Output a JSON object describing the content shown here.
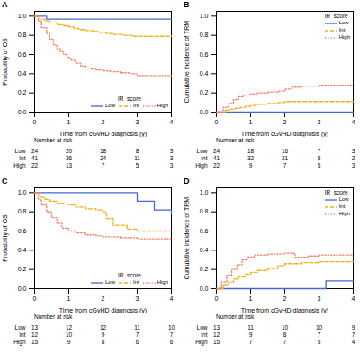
{
  "chart_data": [
    {
      "type": "step",
      "title": "A",
      "xlabel": "Time from cGvHD diagnosis (y)",
      "ylabel": "Probability of OS",
      "xlim": [
        0,
        4
      ],
      "ylim": [
        0.0,
        1.05
      ],
      "xticks": [
        0,
        1,
        2,
        3,
        4
      ],
      "yticks": [
        {
          "value": 0.0,
          "label": "0.0"
        },
        0.2,
        0.4,
        0.6,
        0.8,
        {
          "value": 1.0,
          "label": "1.0"
        }
      ],
      "grid": false,
      "legend": "lower right",
      "legend_title": "IR  score",
      "series": [
        {
          "name": "Low",
          "line_style": "solid",
          "x": [
            0,
            0.25,
            0.35,
            4.0
          ],
          "values": [
            1.0,
            1.0,
            0.97,
            0.97
          ]
        },
        {
          "name": "Int",
          "line_style": "dashed",
          "x": [
            0,
            0.15,
            0.3,
            0.45,
            0.65,
            0.85,
            1.0,
            1.15,
            1.3,
            1.5,
            1.7,
            1.9,
            2.1,
            2.3,
            2.6,
            2.9,
            3.1,
            4.0
          ],
          "values": [
            1.0,
            0.97,
            0.95,
            0.93,
            0.91,
            0.9,
            0.89,
            0.87,
            0.86,
            0.85,
            0.84,
            0.83,
            0.82,
            0.81,
            0.8,
            0.79,
            0.79,
            0.79
          ]
        },
        {
          "name": "High",
          "line_style": "dotted",
          "x": [
            0,
            0.1,
            0.2,
            0.35,
            0.45,
            0.55,
            0.65,
            0.75,
            0.85,
            0.95,
            1.05,
            1.2,
            1.35,
            1.5,
            1.65,
            1.8,
            2.0,
            2.2,
            2.5,
            2.8,
            3.0,
            3.2,
            4.0
          ],
          "values": [
            1.0,
            0.95,
            0.88,
            0.82,
            0.76,
            0.7,
            0.66,
            0.63,
            0.6,
            0.57,
            0.54,
            0.51,
            0.48,
            0.46,
            0.45,
            0.44,
            0.43,
            0.42,
            0.41,
            0.4,
            0.38,
            0.38,
            0.38
          ]
        }
      ],
      "at_risk": {
        "title": "Number at risk",
        "times": [
          0,
          1,
          2,
          3,
          4
        ],
        "labels": [
          "Low",
          "Int",
          "High"
        ],
        "values": [
          [
            24,
            20,
            18,
            8,
            3
          ],
          [
            41,
            36,
            24,
            11,
            3
          ],
          [
            22,
            13,
            7,
            5,
            3
          ]
        ]
      }
    },
    {
      "type": "step",
      "title": "B",
      "xlabel": "Time from cGvHD diagnosis (y)",
      "ylabel": "Cumulative incidence of TRM",
      "xlim": [
        0,
        4
      ],
      "ylim": [
        0.0,
        1.05
      ],
      "xticks": [
        0,
        1,
        2,
        3,
        4
      ],
      "yticks": [
        {
          "value": 0.0,
          "label": "0.0"
        },
        0.2,
        0.4,
        0.6,
        0.8,
        {
          "value": 1.0,
          "label": "1.0"
        }
      ],
      "grid": false,
      "legend": "upper right",
      "legend_title": "IR  score",
      "series": [
        {
          "name": "Low",
          "line_style": "solid",
          "x": [
            0,
            4.0
          ],
          "values": [
            0.0,
            0.0
          ]
        },
        {
          "name": "Int",
          "line_style": "dashed",
          "x": [
            0,
            0.25,
            0.4,
            0.55,
            0.7,
            0.85,
            1.0,
            1.2,
            1.5,
            1.8,
            2.0,
            2.15,
            2.4,
            4.0
          ],
          "values": [
            0.0,
            0.02,
            0.03,
            0.04,
            0.05,
            0.06,
            0.07,
            0.08,
            0.09,
            0.1,
            0.11,
            0.11,
            0.11,
            0.11
          ]
        },
        {
          "name": "High",
          "line_style": "dotted",
          "x": [
            0,
            0.2,
            0.35,
            0.5,
            0.65,
            0.8,
            1.0,
            1.2,
            1.5,
            1.8,
            2.0,
            2.2,
            2.5,
            2.8,
            3.0,
            4.0
          ],
          "values": [
            0.0,
            0.05,
            0.09,
            0.13,
            0.16,
            0.18,
            0.19,
            0.2,
            0.21,
            0.22,
            0.24,
            0.26,
            0.27,
            0.27,
            0.28,
            0.28
          ]
        }
      ],
      "at_risk": {
        "title": "Number at risk",
        "times": [
          0,
          1,
          2,
          3,
          4
        ],
        "labels": [
          "Low",
          "Int",
          "High"
        ],
        "values": [
          [
            24,
            18,
            16,
            7,
            3
          ],
          [
            41,
            32,
            21,
            8,
            2
          ],
          [
            22,
            9,
            7,
            5,
            3
          ]
        ]
      }
    },
    {
      "type": "step",
      "title": "C",
      "xlabel": "Time from cGvHD diagnosis (y)",
      "ylabel": "Probability of OS",
      "xlim": [
        0,
        4
      ],
      "ylim": [
        0.0,
        1.05
      ],
      "xticks": [
        0,
        1,
        2,
        3,
        4
      ],
      "yticks": [
        {
          "value": 0.0,
          "label": "0.0"
        },
        0.2,
        0.4,
        0.6,
        0.8,
        {
          "value": 1.0,
          "label": "1.0"
        }
      ],
      "grid": false,
      "legend": "lower right",
      "legend_title": "IR  score",
      "series": [
        {
          "name": "Low",
          "line_style": "solid",
          "x": [
            0,
            0.5,
            1.0,
            1.5,
            2.0,
            2.5,
            2.8,
            3.0,
            3.5,
            4.0
          ],
          "values": [
            1.0,
            1.0,
            1.0,
            1.0,
            1.0,
            1.0,
            1.0,
            0.91,
            0.82,
            0.78
          ]
        },
        {
          "name": "Int",
          "line_style": "dashed",
          "x": [
            0,
            0.15,
            0.3,
            0.45,
            0.65,
            0.85,
            1.0,
            1.2,
            1.5,
            1.8,
            2.0,
            2.1,
            2.3,
            2.7,
            3.0,
            4.0
          ],
          "values": [
            1.0,
            0.95,
            0.93,
            0.91,
            0.89,
            0.88,
            0.87,
            0.85,
            0.83,
            0.82,
            0.8,
            0.73,
            0.66,
            0.62,
            0.6,
            0.6
          ]
        },
        {
          "name": "High",
          "line_style": "dotted",
          "x": [
            0,
            0.1,
            0.2,
            0.35,
            0.5,
            0.65,
            0.8,
            1.0,
            1.2,
            1.5,
            1.8,
            2.0,
            2.5,
            3.0,
            4.0
          ],
          "values": [
            1.0,
            0.93,
            0.87,
            0.8,
            0.74,
            0.68,
            0.63,
            0.6,
            0.58,
            0.56,
            0.55,
            0.54,
            0.53,
            0.52,
            0.52
          ]
        }
      ],
      "at_risk": {
        "title": "Number at risk",
        "times": [
          0,
          1,
          2,
          3,
          4
        ],
        "labels": [
          "Low",
          "Int",
          "High"
        ],
        "values": [
          [
            13,
            12,
            12,
            11,
            10
          ],
          [
            12,
            10,
            9,
            7,
            7
          ],
          [
            15,
            9,
            8,
            6,
            6
          ]
        ]
      }
    },
    {
      "type": "step",
      "title": "D",
      "xlabel": "Time from cGvHD diagnosis (y)",
      "ylabel": "Cumulative incidence of TRM",
      "xlim": [
        0,
        4
      ],
      "ylim": [
        0.0,
        1.05
      ],
      "xticks": [
        0,
        1,
        2,
        3,
        4
      ],
      "yticks": [
        {
          "value": 0.0,
          "label": "0.0"
        },
        0.2,
        0.4,
        0.6,
        0.8,
        {
          "value": 1.0,
          "label": "1.0"
        }
      ],
      "grid": false,
      "legend": "upper right",
      "legend_title": "IR  score",
      "series": [
        {
          "name": "Low",
          "line_style": "solid",
          "x": [
            0,
            3.0,
            3.2,
            4.0
          ],
          "values": [
            0.0,
            0.0,
            0.08,
            0.08
          ]
        },
        {
          "name": "Int",
          "line_style": "dashed",
          "x": [
            0,
            0.2,
            0.35,
            0.5,
            0.65,
            0.85,
            1.0,
            1.2,
            1.5,
            1.8,
            2.0,
            2.5,
            3.0,
            4.0
          ],
          "values": [
            0.0,
            0.04,
            0.07,
            0.1,
            0.13,
            0.15,
            0.17,
            0.19,
            0.21,
            0.24,
            0.26,
            0.27,
            0.28,
            0.28
          ]
        },
        {
          "name": "High",
          "line_style": "dotted",
          "x": [
            0,
            0.15,
            0.3,
            0.45,
            0.6,
            0.75,
            0.9,
            1.1,
            1.5,
            2.0,
            2.3,
            2.7,
            3.0,
            3.5,
            4.0
          ],
          "values": [
            0.0,
            0.07,
            0.14,
            0.2,
            0.25,
            0.3,
            0.33,
            0.35,
            0.36,
            0.37,
            0.33,
            0.34,
            0.35,
            0.35,
            0.35
          ]
        }
      ],
      "at_risk": {
        "title": "Number at risk",
        "times": [
          0,
          1,
          2,
          3,
          4
        ],
        "labels": [
          "Low",
          "Int",
          "High"
        ],
        "values": [
          [
            13,
            11,
            10,
            10,
            9
          ],
          [
            12,
            9,
            8,
            7,
            7
          ],
          [
            15,
            7,
            7,
            5,
            4
          ]
        ]
      }
    }
  ]
}
